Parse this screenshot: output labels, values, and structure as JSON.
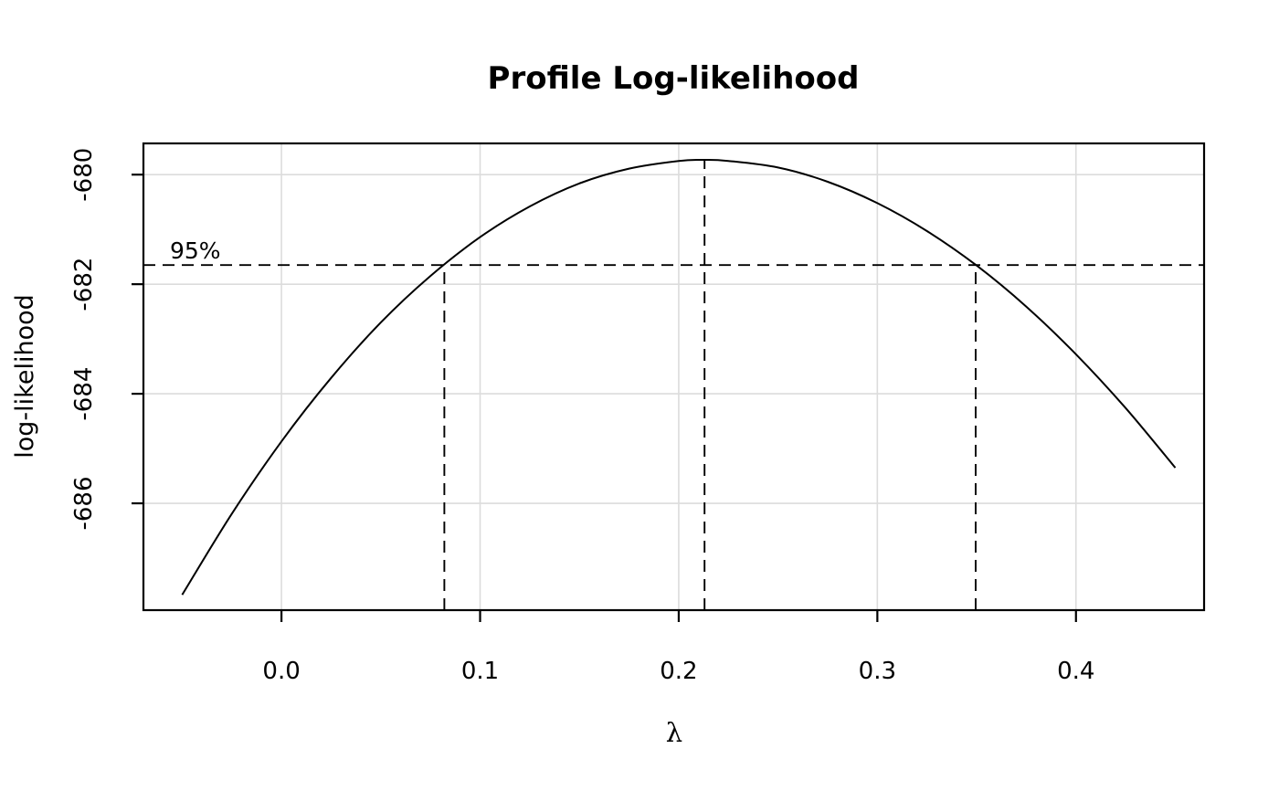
{
  "figure": {
    "background": "#ffffff"
  },
  "chart_data": {
    "type": "line",
    "title": "Profile Log-likelihood",
    "xlabel": "λ",
    "ylabel": "log-likelihood",
    "xlim": [
      -0.0695,
      0.4645
    ],
    "ylim": [
      -687.95,
      -679.43
    ],
    "x_ticks": [
      0.0,
      0.1,
      0.2,
      0.3,
      0.4
    ],
    "x_tick_labels": [
      "0.0",
      "0.1",
      "0.2",
      "0.3",
      "0.4"
    ],
    "y_ticks": [
      -680,
      -682,
      -684,
      -686
    ],
    "y_tick_labels": [
      "-680",
      "-682",
      "-684",
      "-686"
    ],
    "grid": true,
    "legend": null,
    "series": [
      {
        "name": "profile-log-likelihood",
        "x": [
          -0.05,
          -0.025,
          0.0,
          0.025,
          0.05,
          0.075,
          0.1,
          0.125,
          0.15,
          0.175,
          0.2,
          0.213,
          0.225,
          0.25,
          0.275,
          0.3,
          0.325,
          0.35,
          0.375,
          0.4,
          0.425,
          0.45
        ],
        "y": [
          -687.67,
          -686.19,
          -684.87,
          -683.71,
          -682.7,
          -681.85,
          -681.14,
          -680.58,
          -680.16,
          -679.89,
          -679.75,
          -679.73,
          -679.75,
          -679.87,
          -680.13,
          -680.52,
          -681.03,
          -681.66,
          -682.41,
          -683.28,
          -684.26,
          -685.35
        ]
      }
    ],
    "annotations": {
      "ci_label": "95%",
      "cutoff_loglik": -681.65,
      "lambda_hat": 0.213,
      "max_loglik": -679.73,
      "ci_lower": 0.082,
      "ci_upper": 0.3495
    },
    "colors": {
      "curve": "#000000",
      "dashed": "#000000",
      "grid": "#dcdcdc",
      "axis": "#000000",
      "text": "#000000",
      "background": "#ffffff"
    }
  }
}
